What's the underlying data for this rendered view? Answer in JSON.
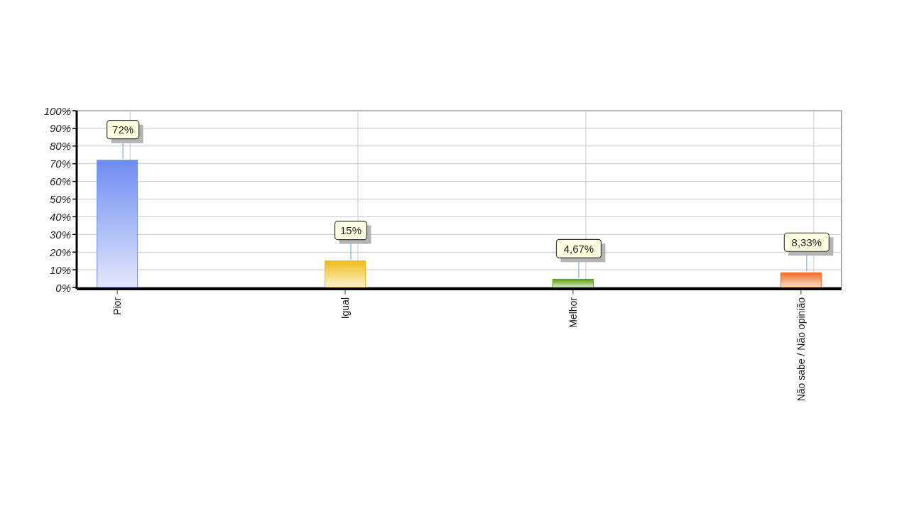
{
  "chart_data": {
    "type": "bar",
    "categories": [
      "Pior",
      "Igual",
      "Melhor",
      "Não sabe / Não opinião"
    ],
    "values": [
      72,
      15,
      4.67,
      8.33
    ],
    "colors": [
      "#6f8cf2",
      "#eebc18",
      "#5c9e12",
      "#f06a22"
    ],
    "value_labels": [
      "72%",
      "15%",
      "4,67%",
      "8,33%"
    ],
    "ylim": [
      0,
      100
    ],
    "yticks": [
      {
        "value": 0,
        "label": "0%"
      },
      {
        "value": 10,
        "label": "10%"
      },
      {
        "value": 20,
        "label": "20%"
      },
      {
        "value": 30,
        "label": "30%"
      },
      {
        "value": 40,
        "label": "40%"
      },
      {
        "value": 50,
        "label": "50%"
      },
      {
        "value": 60,
        "label": "60%"
      },
      {
        "value": 70,
        "label": "70%"
      },
      {
        "value": 80,
        "label": "80%"
      },
      {
        "value": 90,
        "label": "90%"
      },
      {
        "value": 100,
        "label": "100%"
      }
    ],
    "grid": true
  }
}
